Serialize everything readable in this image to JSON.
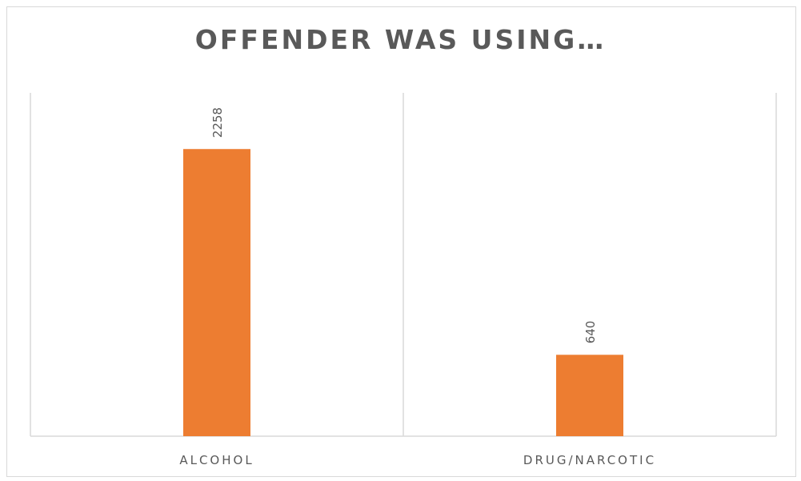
{
  "chart_data": {
    "type": "bar",
    "title": "OFFENDER WAS USING…",
    "categories": [
      "ALCOHOL",
      "DRUG/NARCOTIC"
    ],
    "values": [
      2258,
      640
    ],
    "data_labels": [
      "2258",
      "640"
    ],
    "ylim": [
      0,
      2700
    ],
    "grid": false,
    "legend": "none",
    "bar_color": "#ED7D31",
    "axis_color": "#d9d9d9",
    "text_color": "#595959"
  }
}
